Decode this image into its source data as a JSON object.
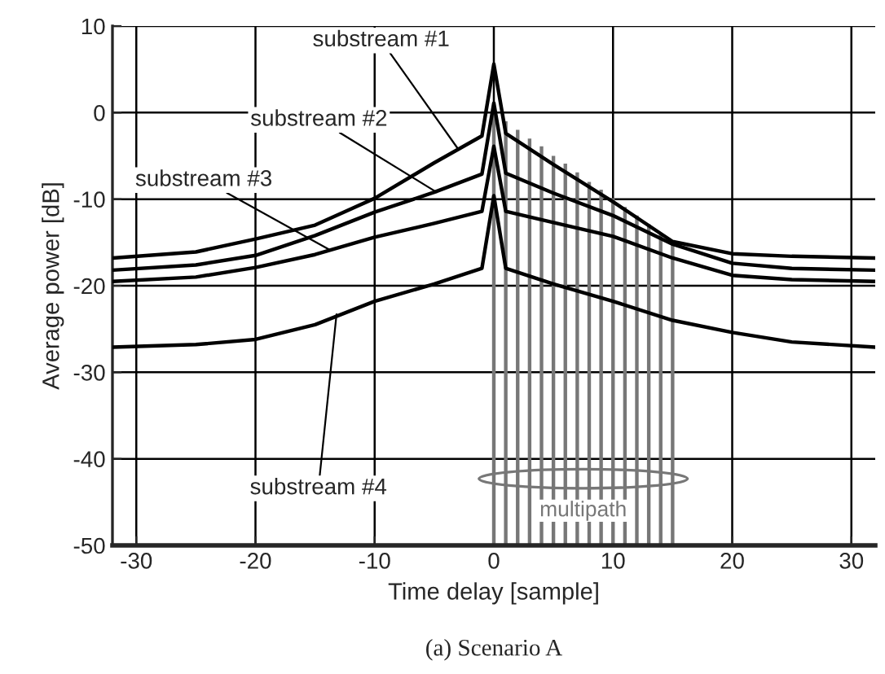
{
  "chart_data": {
    "type": "line",
    "xlabel": "Time delay [sample]",
    "ylabel": "Average power [dB]",
    "xlim": [
      -32,
      32
    ],
    "ylim": [
      -50,
      10
    ],
    "xticks": [
      -30,
      -20,
      -10,
      0,
      10,
      20,
      30
    ],
    "yticks": [
      -50,
      -40,
      -30,
      -20,
      -10,
      0,
      10
    ],
    "grid": true,
    "marker": "none",
    "line_style": "solid",
    "series": [
      {
        "color": "#000000",
        "x": [
          -32,
          -25,
          -20,
          -15,
          -10,
          -5,
          -1,
          0,
          1,
          5,
          10,
          15,
          20,
          25,
          32
        ],
        "values": [
          -16.8,
          -16.1,
          -14.6,
          -13,
          -9.9,
          -5.8,
          -2.7,
          5.6,
          -2.4,
          -6,
          -10.3,
          -14.9,
          -16.3,
          -16.6,
          -16.8
        ]
      },
      {
        "color": "#000000",
        "x": [
          -32,
          -25,
          -20,
          -15,
          -10,
          -5,
          -1,
          0,
          1,
          5,
          10,
          15,
          20,
          25,
          32
        ],
        "values": [
          -18.2,
          -17.6,
          -16.5,
          -14.2,
          -11.5,
          -9.2,
          -7.1,
          1.1,
          -7,
          -9.3,
          -11.9,
          -15.2,
          -17.4,
          -18,
          -18.2
        ]
      },
      {
        "color": "#000000",
        "x": [
          -32,
          -25,
          -20,
          -15,
          -10,
          -5,
          -1,
          0,
          1,
          5,
          10,
          15,
          20,
          25,
          32
        ],
        "values": [
          -19.5,
          -19,
          -17.9,
          -16.4,
          -14.4,
          -12.8,
          -11.4,
          -3.9,
          -11.4,
          -12.7,
          -14.3,
          -16.8,
          -18.8,
          -19.3,
          -19.5
        ]
      },
      {
        "color": "#000000",
        "x": [
          -32,
          -25,
          -20,
          -15,
          -10,
          -5,
          -1,
          0,
          1,
          5,
          10,
          15,
          20,
          25,
          32
        ],
        "values": [
          -27.1,
          -26.8,
          -26.2,
          -24.5,
          -21.8,
          -19.8,
          -18,
          -9.6,
          -18,
          -19.8,
          -21.8,
          -24,
          -25.4,
          -26.5,
          -27.1
        ]
      },
      {
        "type": "bar",
        "color": "#777777",
        "x": [
          0,
          1,
          2,
          3,
          4,
          5,
          6,
          7,
          8,
          9,
          10,
          11,
          12,
          13,
          14,
          15
        ],
        "base": [
          -50,
          -50,
          -50,
          -50,
          -50,
          -50,
          -50,
          -50,
          -50,
          -50,
          -50,
          -50,
          -50,
          -50,
          -50,
          -50
        ],
        "values": [
          50,
          49,
          48,
          47,
          46.1,
          45,
          44.1,
          43.1,
          42,
          41.1,
          40.1,
          39.1,
          38.1,
          37.1,
          36.1,
          35
        ]
      }
    ],
    "annotations": [
      {
        "text": "substream #1",
        "x": -3,
        "y": -4.2
      },
      {
        "text": "substream #2",
        "x": -4.8,
        "y": -9.2
      },
      {
        "text": "substream #3",
        "x": -13.7,
        "y": -15.9
      },
      {
        "text": "substream #4",
        "x": -13.2,
        "y": -23.3
      },
      "multipath",
      "(a) Scenario A"
    ]
  }
}
